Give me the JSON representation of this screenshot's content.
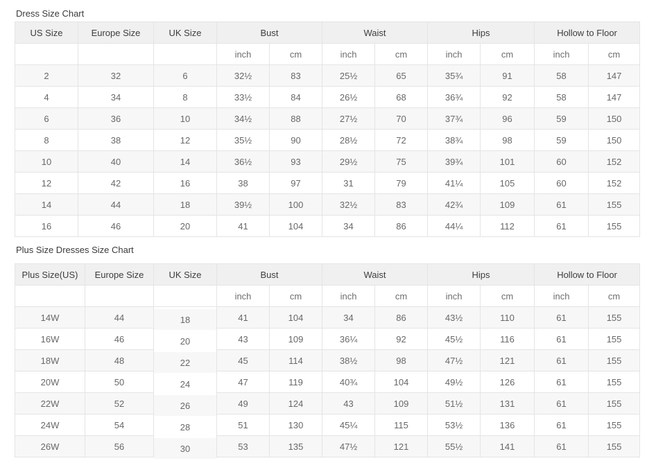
{
  "colors": {
    "header_bg": "#f0f0f0",
    "zebra_row_bg": "#f7f7f7",
    "border": "#e4e4e4",
    "body_text": "#686868",
    "heading_text": "#3a3a3a"
  },
  "tables": [
    {
      "title": "Dress Size Chart",
      "group_headers": [
        {
          "label": "US Size",
          "span": 1
        },
        {
          "label": "Europe Size",
          "span": 1
        },
        {
          "label": "UK Size",
          "span": 1
        },
        {
          "label": "Bust",
          "span": 2
        },
        {
          "label": "Waist",
          "span": 2
        },
        {
          "label": "Hips",
          "span": 2
        },
        {
          "label": "Hollow to Floor",
          "span": 2
        }
      ],
      "unit_row": [
        "",
        "",
        "",
        "inch",
        "cm",
        "inch",
        "cm",
        "inch",
        "cm",
        "inch",
        "cm"
      ],
      "rows": [
        [
          "2",
          "32",
          "6",
          "32½",
          "83",
          "25½",
          "65",
          "35¾",
          "91",
          "58",
          "147"
        ],
        [
          "4",
          "34",
          "8",
          "33½",
          "84",
          "26½",
          "68",
          "36¾",
          "92",
          "58",
          "147"
        ],
        [
          "6",
          "36",
          "10",
          "34½",
          "88",
          "27½",
          "70",
          "37¾",
          "96",
          "59",
          "150"
        ],
        [
          "8",
          "38",
          "12",
          "35½",
          "90",
          "28½",
          "72",
          "38¾",
          "98",
          "59",
          "150"
        ],
        [
          "10",
          "40",
          "14",
          "36½",
          "93",
          "29½",
          "75",
          "39¾",
          "101",
          "60",
          "152"
        ],
        [
          "12",
          "42",
          "16",
          "38",
          "97",
          "31",
          "79",
          "41¼",
          "105",
          "60",
          "152"
        ],
        [
          "14",
          "44",
          "18",
          "39½",
          "100",
          "32½",
          "83",
          "42¾",
          "109",
          "61",
          "155"
        ],
        [
          "16",
          "46",
          "20",
          "41",
          "104",
          "34",
          "86",
          "44¼",
          "112",
          "61",
          "155"
        ]
      ]
    },
    {
      "title": "Plus Size Dresses Size Chart",
      "group_headers": [
        {
          "label": "Plus Size(US)",
          "span": 1
        },
        {
          "label": "Europe Size",
          "span": 1
        },
        {
          "label": "UK Size",
          "span": 1
        },
        {
          "label": "Bust",
          "span": 2
        },
        {
          "label": "Waist",
          "span": 2
        },
        {
          "label": "Hips",
          "span": 2
        },
        {
          "label": "Hollow to Floor",
          "span": 2
        }
      ],
      "unit_row": [
        "",
        "",
        "",
        "inch",
        "cm",
        "inch",
        "cm",
        "inch",
        "cm",
        "inch",
        "cm"
      ],
      "rows": [
        [
          "14W",
          "44",
          "18",
          "41",
          "104",
          "34",
          "86",
          "43½",
          "110",
          "61",
          "155"
        ],
        [
          "16W",
          "46",
          "20",
          "43",
          "109",
          "36¼",
          "92",
          "45½",
          "116",
          "61",
          "155"
        ],
        [
          "18W",
          "48",
          "22",
          "45",
          "114",
          "38½",
          "98",
          "47½",
          "121",
          "61",
          "155"
        ],
        [
          "20W",
          "50",
          "24",
          "47",
          "119",
          "40¾",
          "104",
          "49½",
          "126",
          "61",
          "155"
        ],
        [
          "22W",
          "52",
          "26",
          "49",
          "124",
          "43",
          "109",
          "51½",
          "131",
          "61",
          "155"
        ],
        [
          "24W",
          "54",
          "28",
          "51",
          "130",
          "45¼",
          "115",
          "53½",
          "136",
          "61",
          "155"
        ],
        [
          "26W",
          "56",
          "30",
          "53",
          "135",
          "47½",
          "121",
          "55½",
          "141",
          "61",
          "155"
        ]
      ]
    }
  ]
}
